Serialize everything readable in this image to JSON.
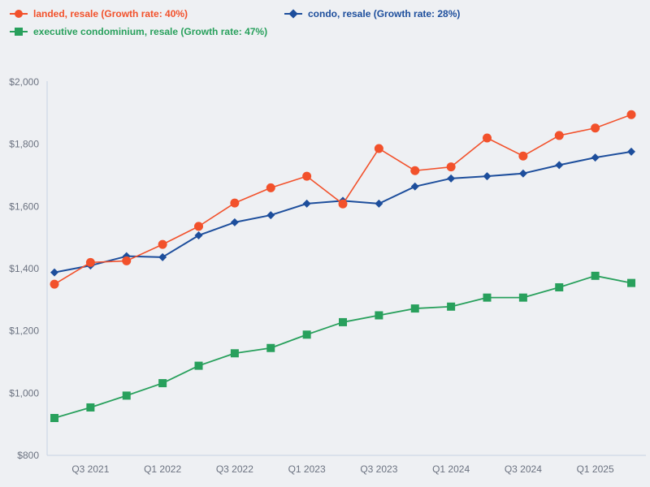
{
  "legend": {
    "items": [
      {
        "label": "landed, resale (Growth rate: 40%)",
        "marker": "circle"
      },
      {
        "label": "condo, resale (Growth rate: 28%)",
        "marker": "diamond"
      },
      {
        "label": "executive condominium, resale (Growth rate: 47%)",
        "marker": "square"
      }
    ]
  },
  "chart_data": {
    "type": "line",
    "x": [
      "Q2 2021",
      "Q3 2021",
      "Q4 2021",
      "Q1 2022",
      "Q2 2022",
      "Q3 2022",
      "Q4 2022",
      "Q1 2023",
      "Q2 2023",
      "Q3 2023",
      "Q4 2023",
      "Q1 2024",
      "Q2 2024",
      "Q3 2024",
      "Q4 2024",
      "Q1 2025",
      "Q2 2025"
    ],
    "series": [
      {
        "name": "landed, resale",
        "growth_rate": "40%",
        "color": "#f2512b",
        "marker": "circle",
        "values": [
          1350,
          1420,
          1425,
          1478,
          1536,
          1611,
          1660,
          1697,
          1608,
          1786,
          1715,
          1727,
          1820,
          1762,
          1828,
          1852,
          1895
        ]
      },
      {
        "name": "condo, resale",
        "growth_rate": "28%",
        "color": "#1d4e9c",
        "marker": "diamond",
        "values": [
          1388,
          1410,
          1440,
          1437,
          1507,
          1549,
          1572,
          1609,
          1618,
          1609,
          1664,
          1690,
          1697,
          1706,
          1733,
          1757,
          1776
        ]
      },
      {
        "name": "executive condominium, resale",
        "growth_rate": "47%",
        "color": "#28a05c",
        "marker": "square",
        "values": [
          920,
          954,
          992,
          1032,
          1088,
          1128,
          1145,
          1188,
          1228,
          1250,
          1272,
          1278,
          1307,
          1307,
          1340,
          1377,
          1354
        ]
      }
    ],
    "ylim": [
      800,
      2000
    ],
    "y_ticks": [
      {
        "value": 800,
        "label": "$800"
      },
      {
        "value": 1000,
        "label": "$1,000"
      },
      {
        "value": 1200,
        "label": "$1,200"
      },
      {
        "value": 1400,
        "label": "$1,400"
      },
      {
        "value": 1600,
        "label": "$1,600"
      },
      {
        "value": 1800,
        "label": "$1,800"
      },
      {
        "value": 2000,
        "label": "$2,000"
      }
    ],
    "x_tick_labels": [
      {
        "index": 1,
        "label": "Q3 2021"
      },
      {
        "index": 3,
        "label": "Q1 2022"
      },
      {
        "index": 5,
        "label": "Q3 2022"
      },
      {
        "index": 7,
        "label": "Q1 2023"
      },
      {
        "index": 9,
        "label": "Q3 2023"
      },
      {
        "index": 11,
        "label": "Q1 2024"
      },
      {
        "index": 13,
        "label": "Q3 2024"
      },
      {
        "index": 15,
        "label": "Q1 2025"
      }
    ],
    "grid": false,
    "legend_position": "top, two rows"
  },
  "colors": {
    "background": "#eef0f3",
    "axis_line": "#c7d2e3",
    "tick_text": "#6b7280"
  }
}
